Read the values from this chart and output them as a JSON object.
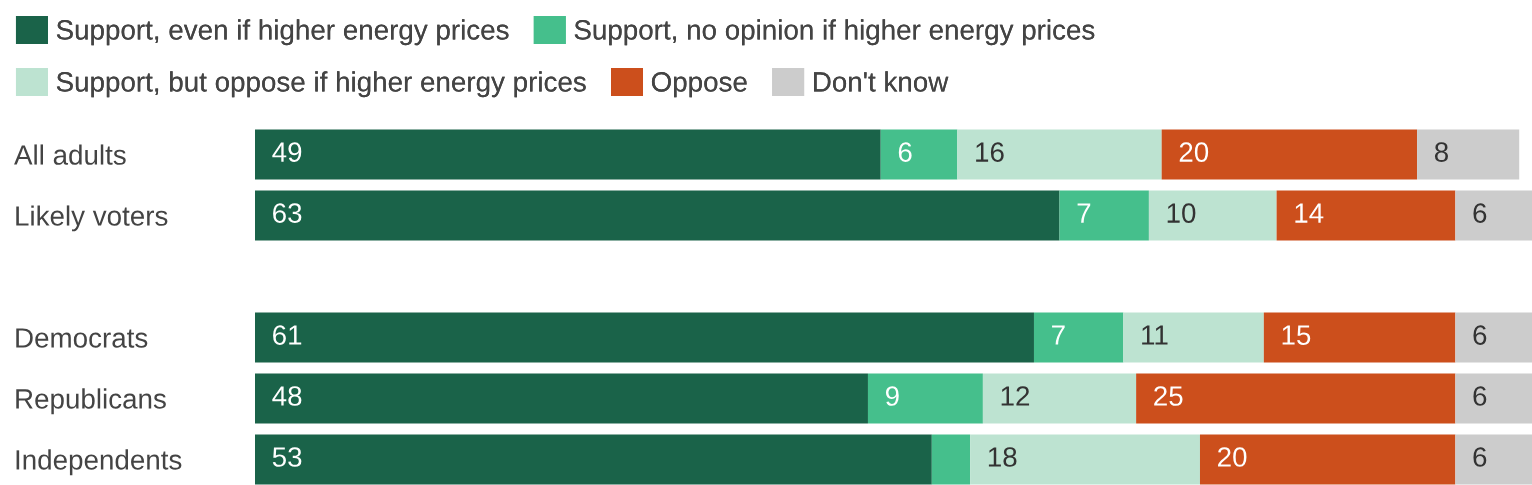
{
  "chart_data": {
    "type": "bar",
    "orientation": "horizontal",
    "stacked": true,
    "legend": "top left",
    "categories": [
      "All adults",
      "Likely voters",
      null,
      "Democrats",
      "Republicans",
      "Independents"
    ],
    "series": [
      {
        "name": "Support, even if higher energy prices",
        "color": "#1a6349",
        "values": [
          49,
          63,
          null,
          61,
          48,
          53
        ],
        "value_labels": [
          "49",
          "63",
          null,
          "61",
          "48",
          "53"
        ]
      },
      {
        "name": "Support, no opinion if higher energy prices",
        "color": "#45bf8c",
        "values": [
          6,
          7,
          null,
          7,
          9,
          3
        ],
        "value_labels": [
          "6",
          "7",
          null,
          "7",
          "9",
          null
        ]
      },
      {
        "name": "Support, but oppose if higher energy prices",
        "color": "#bde3d1",
        "values": [
          16,
          10,
          null,
          11,
          12,
          18
        ],
        "value_labels": [
          "16",
          "10",
          null,
          "11",
          "12",
          "18"
        ]
      },
      {
        "name": "Oppose",
        "color": "#cc4f1c",
        "values": [
          20,
          14,
          null,
          15,
          25,
          20
        ],
        "value_labels": [
          "20",
          "14",
          null,
          "15",
          "25",
          "20"
        ]
      },
      {
        "name": "Don't know",
        "color": "#cccccc",
        "values": [
          8,
          6,
          null,
          6,
          6,
          6
        ],
        "value_labels": [
          "8",
          "6",
          null,
          "6",
          "6",
          "6"
        ]
      }
    ]
  }
}
